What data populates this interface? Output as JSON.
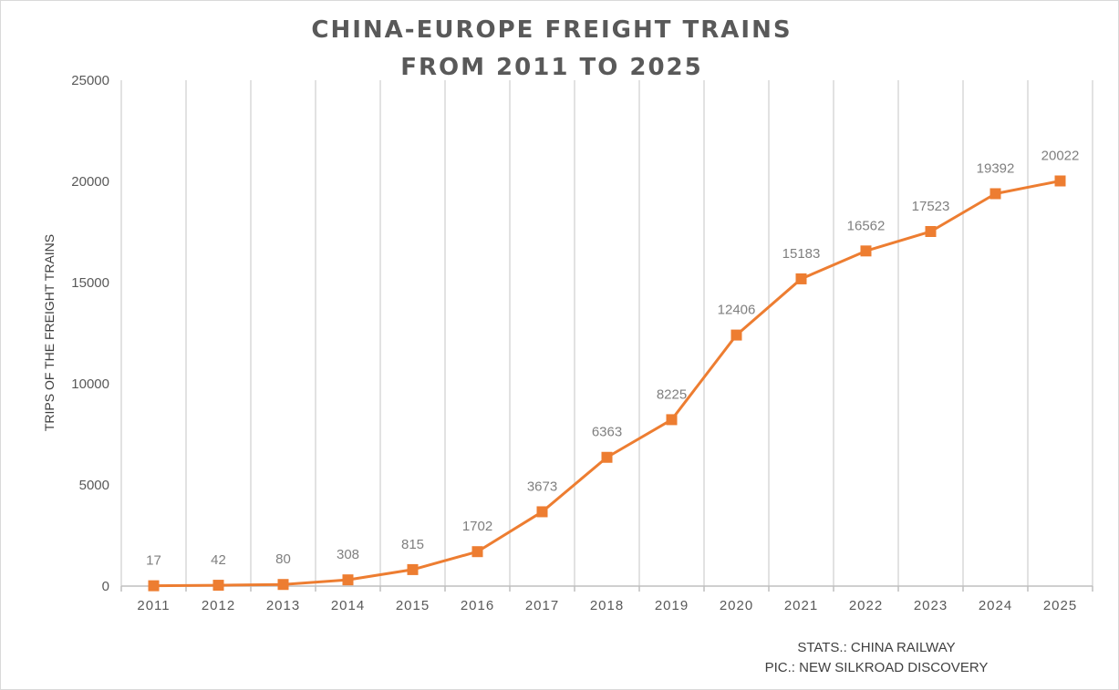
{
  "chart_data": {
    "type": "line",
    "title_line1": "CHINA-EUROPE FREIGHT TRAINS",
    "title_line2": "FROM 2011 TO 2025",
    "ylabel": "TRIPS OF THE FREIGHT TRAINS",
    "xlabel": "",
    "categories": [
      "2011",
      "2012",
      "2013",
      "2014",
      "2015",
      "2016",
      "2017",
      "2018",
      "2019",
      "2020",
      "2021",
      "2022",
      "2023",
      "2024",
      "2025"
    ],
    "series": [
      {
        "values": [
          17,
          42,
          80,
          308,
          815,
          1702,
          3673,
          6363,
          8225,
          12406,
          15183,
          16562,
          17523,
          19392,
          20022
        ]
      }
    ],
    "ylim": [
      0,
      25000
    ],
    "yticks": [
      0,
      5000,
      10000,
      15000,
      20000,
      25000
    ],
    "grid": "vertical",
    "line_color": "#ed7d31",
    "marker": "square",
    "data_labels": true
  },
  "credits": {
    "stats": "STATS.: CHINA RAILWAY",
    "pic": "PIC.: NEW SILKROAD DISCOVERY"
  }
}
